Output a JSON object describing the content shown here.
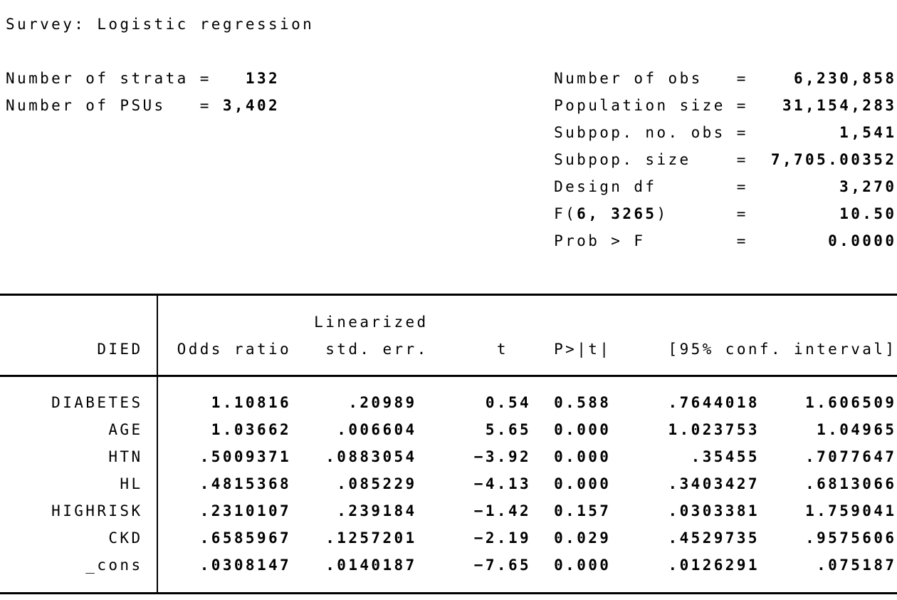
{
  "title": "Survey: Logistic regression",
  "colors": {
    "text": "#000000",
    "background": "#ffffff",
    "rules": "#000000"
  },
  "stats": {
    "eq": "=",
    "left": [
      {
        "label": "Number of strata",
        "value": "132"
      },
      {
        "label": "Number of PSUs",
        "value": "3,402"
      }
    ],
    "right": [
      {
        "label": "Number of obs",
        "value": "6,230,858"
      },
      {
        "label": "Population size",
        "value": "31,154,283"
      },
      {
        "label": "Subpop. no. obs",
        "value": "1,541"
      },
      {
        "label": "Subpop. size",
        "value": "7,705.00352"
      },
      {
        "label": "Design df",
        "value": "3,270"
      },
      {
        "label": "F(6, 3265)",
        "label_parts": {
          "prefix": "F(",
          "bold": "6, 3265",
          "suffix": ")"
        },
        "value": "10.50"
      },
      {
        "label": "Prob > F",
        "value": "0.0000"
      }
    ]
  },
  "table": {
    "depvar": "DIED",
    "header_top": "Linearized",
    "header_cells": [
      "Odds ratio",
      "std. err.",
      "t",
      "P>|t|",
      "[95% conf. interval]"
    ],
    "rows": [
      {
        "var": "DIABETES",
        "odds_ratio": "1.10816",
        "std_err": ".20989",
        "t": "0.54",
        "p": "0.588",
        "ci_low": ".7644018",
        "ci_high": "1.606509"
      },
      {
        "var": "AGE",
        "odds_ratio": "1.03662",
        "std_err": ".006604",
        "t": "5.65",
        "p": "0.000",
        "ci_low": "1.023753",
        "ci_high": "1.04965"
      },
      {
        "var": "HTN",
        "odds_ratio": ".5009371",
        "std_err": ".0883054",
        "t": "-3.92",
        "p": "0.000",
        "ci_low": ".35455",
        "ci_high": ".7077647"
      },
      {
        "var": "HL",
        "odds_ratio": ".4815368",
        "std_err": ".085229",
        "t": "-4.13",
        "p": "0.000",
        "ci_low": ".3403427",
        "ci_high": ".6813066"
      },
      {
        "var": "HIGHRISK",
        "odds_ratio": ".2310107",
        "std_err": ".239184",
        "t": "-1.42",
        "p": "0.157",
        "ci_low": ".0303381",
        "ci_high": "1.759041"
      },
      {
        "var": "CKD",
        "odds_ratio": ".6585967",
        "std_err": ".1257201",
        "t": "-2.19",
        "p": "0.029",
        "ci_low": ".4529735",
        "ci_high": ".9575606"
      },
      {
        "var": "_cons",
        "odds_ratio": ".0308147",
        "std_err": ".0140187",
        "t": "-7.65",
        "p": "0.000",
        "ci_low": ".0126291",
        "ci_high": ".075187"
      }
    ]
  }
}
